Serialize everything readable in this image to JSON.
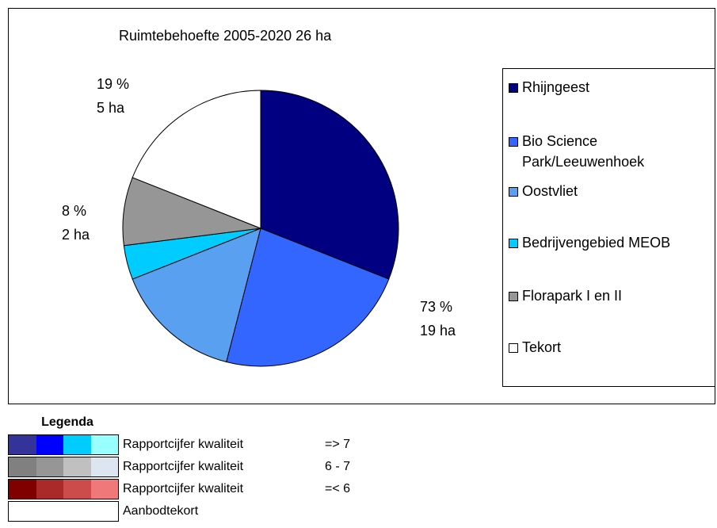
{
  "chart_data": {
    "type": "pie",
    "title": "Ruimtebehoefte 2005-2020 26 ha",
    "categories": [
      "Rhijngeest",
      "Bio Science Park/Leeuwenhoek",
      "Oostvliet",
      "Bedrijvengebied MEOB",
      "Florapark I en II",
      "Tekort"
    ],
    "values": [
      31,
      23,
      15,
      4,
      8,
      19
    ],
    "colors": [
      "#000080",
      "#3366ff",
      "#5aa0f0",
      "#00ccff",
      "#969696",
      "#ffffff"
    ],
    "legend": "right",
    "annotations": [
      {
        "lines": [
          "19 %",
          "5 ha"
        ]
      },
      {
        "lines": [
          "8 %",
          "2 ha"
        ]
      },
      {
        "lines": [
          "73 %",
          "19 ha"
        ]
      }
    ]
  },
  "legend_table": {
    "title": "Legenda",
    "rows": [
      {
        "colors": [
          "#333399",
          "#0000ff",
          "#00ccff",
          "#99ffff"
        ],
        "label": "Rapportcijfer kwaliteit",
        "range": "=> 7"
      },
      {
        "colors": [
          "#808080",
          "#969696",
          "#c0c0c0",
          "#dde6f0"
        ],
        "label": "Rapportcijfer kwaliteit",
        "range": "6 - 7"
      },
      {
        "colors": [
          "#800000",
          "#aa2a2a",
          "#cc4c4c",
          "#f07878"
        ],
        "label": "Rapportcijfer kwaliteit",
        "range": "=< 6"
      },
      {
        "colors": [
          "#ffffff",
          "#ffffff",
          "#ffffff",
          "#ffffff"
        ],
        "label": "Aanbodtekort"
      }
    ]
  }
}
